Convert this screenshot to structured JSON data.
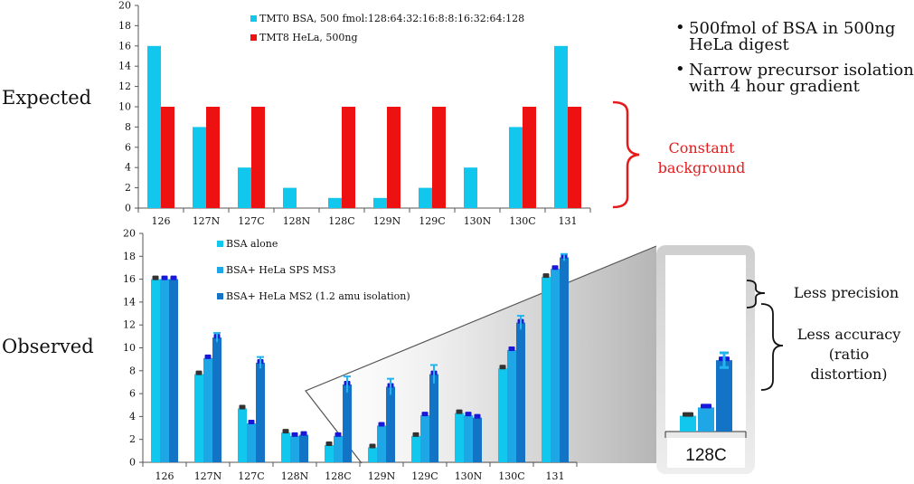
{
  "labels": {
    "expected": "Expected",
    "observed": "Observed",
    "bullets": [
      [
        "500fmol of BSA in 500ng",
        "HeLa digest"
      ],
      [
        "Narrow precursor isolation",
        "with 4 hour gradient"
      ]
    ],
    "constant_background": [
      "Constant",
      "background"
    ],
    "less_precision": "Less precision",
    "less_accuracy": [
      "Less accuracy",
      "(ratio",
      "distortion)"
    ],
    "inset_category": "128C"
  },
  "colors": {
    "cyan": "#12c7ee",
    "red": "#ee1111",
    "mid_blue": "#1fa6e6",
    "dark_blue": "#1273c7",
    "cap_dark": "#333333",
    "cap_blue": "#1818d8",
    "error_bar": "#22b4f0",
    "accent_red": "#e51b1b"
  },
  "chart_data": [
    {
      "id": "expected",
      "type": "bar",
      "categories": [
        "126",
        "127N",
        "127C",
        "128N",
        "128C",
        "129N",
        "129C",
        "130N",
        "130C",
        "131"
      ],
      "ylim": [
        0,
        20
      ],
      "yticks": [
        0,
        2,
        4,
        6,
        8,
        10,
        12,
        14,
        16,
        18,
        20
      ],
      "series": [
        {
          "name": "TMT0 BSA, 500 fmol:128:64:32:16:8:8:16:32:64:128",
          "color": "#12c7ee",
          "values": [
            16,
            8,
            4,
            2,
            1,
            1,
            2,
            4,
            8,
            16
          ]
        },
        {
          "name": "TMT8 HeLa, 500ng",
          "color": "#ee1111",
          "values": [
            10,
            10,
            10,
            0,
            10,
            10,
            10,
            0,
            10,
            10
          ]
        }
      ]
    },
    {
      "id": "observed",
      "type": "bar",
      "categories": [
        "126",
        "127N",
        "127C",
        "128N",
        "128C",
        "129N",
        "129C",
        "130N",
        "130C",
        "131"
      ],
      "ylim": [
        0,
        20
      ],
      "yticks": [
        0,
        2,
        4,
        6,
        8,
        10,
        12,
        14,
        16,
        18,
        20
      ],
      "series": [
        {
          "name": "BSA alone",
          "color": "#12c7ee",
          "values": [
            16,
            7.7,
            4.7,
            2.6,
            1.5,
            1.3,
            2.3,
            4.3,
            8.2,
            16.2
          ]
        },
        {
          "name": "BSA+ HeLa SPS MS3",
          "color": "#1fa6e6",
          "values": [
            16,
            9.1,
            3.4,
            2.3,
            2.3,
            3.2,
            4.1,
            4.1,
            9.8,
            16.9
          ]
        },
        {
          "name": "BSA+ HeLa MS2 (1.2 amu isolation)",
          "color": "#1273c7",
          "values": [
            16,
            10.9,
            8.7,
            2.4,
            6.8,
            6.6,
            7.7,
            3.9,
            12.2,
            17.9
          ],
          "errors": [
            0,
            0.4,
            0.5,
            0,
            0.7,
            0.7,
            0.8,
            0,
            0.6,
            0.3
          ]
        }
      ]
    },
    {
      "id": "inset-128C",
      "type": "bar",
      "categories": [
        "128C"
      ],
      "series": [
        {
          "name": "BSA alone",
          "values": [
            1.5
          ]
        },
        {
          "name": "BSA+ HeLa SPS MS3",
          "values": [
            2.3
          ]
        },
        {
          "name": "BSA+ HeLa MS2 (1.2 amu isolation)",
          "values": [
            6.8
          ],
          "errors": [
            0.7
          ]
        }
      ]
    }
  ]
}
